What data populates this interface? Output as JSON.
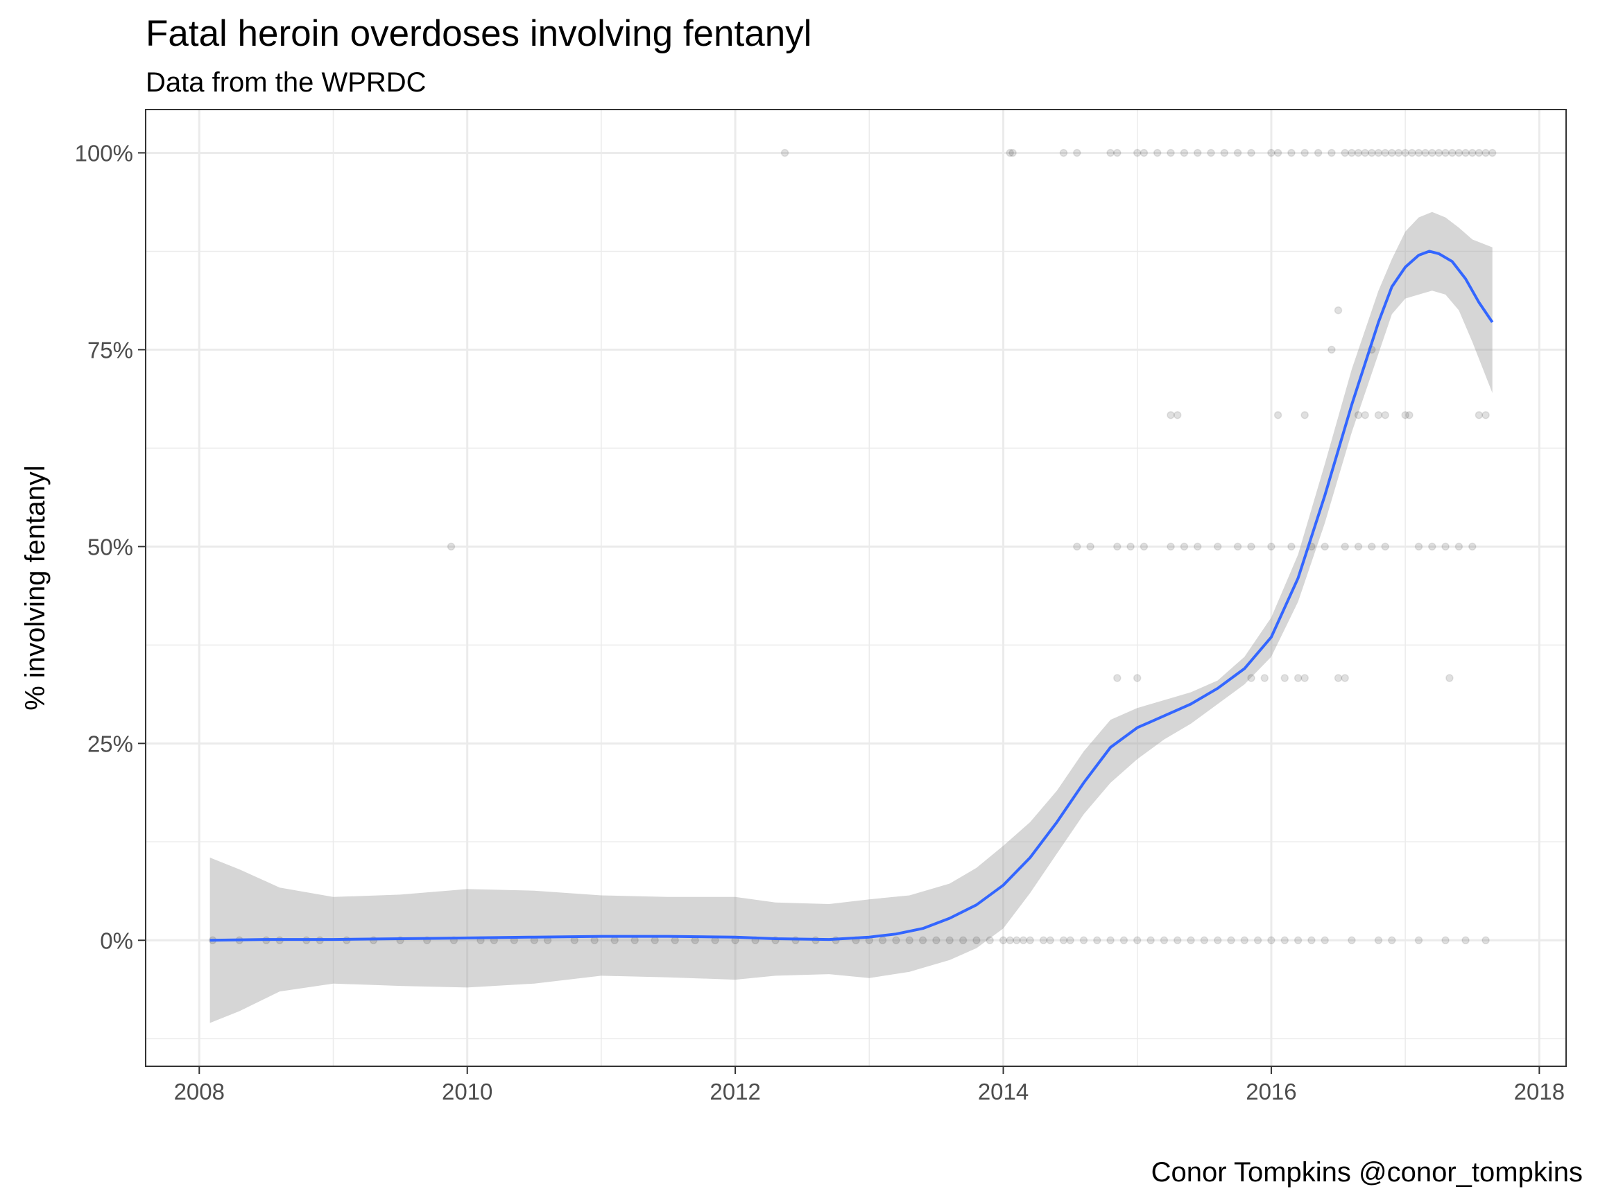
{
  "chart_data": {
    "type": "scatter",
    "title": "Fatal heroin overdoses involving fentanyl",
    "subtitle": "Data from the WPRDC",
    "caption": "Conor Tompkins @conor_tompkins",
    "xlabel": "",
    "ylabel": "% involving fentanyl",
    "xlim": [
      2007.6,
      2018.2
    ],
    "ylim": [
      -0.16,
      1.055
    ],
    "x_ticks": [
      {
        "value": 2008,
        "label": "2008"
      },
      {
        "value": 2010,
        "label": "2010"
      },
      {
        "value": 2012,
        "label": "2012"
      },
      {
        "value": 2014,
        "label": "2014"
      },
      {
        "value": 2016,
        "label": "2016"
      },
      {
        "value": 2018,
        "label": "2018"
      }
    ],
    "y_ticks": [
      {
        "value": 0,
        "label": "0%"
      },
      {
        "value": 0.25,
        "label": "25%"
      },
      {
        "value": 0.5,
        "label": "50%"
      },
      {
        "value": 0.75,
        "label": "75%"
      },
      {
        "value": 1,
        "label": "100%"
      }
    ],
    "grid": true,
    "colors": {
      "points": "#000000",
      "smooth_line": "#3366ff",
      "ribbon": "#999999",
      "grid": "#ebebeb",
      "border": "#333333"
    },
    "points_opacity": 0.12,
    "series": [
      {
        "type": "scatter",
        "points": [
          [
            2008.1,
            0
          ],
          [
            2008.3,
            0
          ],
          [
            2008.5,
            0
          ],
          [
            2008.6,
            0
          ],
          [
            2008.8,
            0
          ],
          [
            2008.9,
            0
          ],
          [
            2009.1,
            0
          ],
          [
            2009.3,
            0
          ],
          [
            2009.5,
            0
          ],
          [
            2009.7,
            0
          ],
          [
            2009.9,
            0
          ],
          [
            2010.1,
            0
          ],
          [
            2010.2,
            0
          ],
          [
            2010.35,
            0
          ],
          [
            2010.5,
            0
          ],
          [
            2010.6,
            0
          ],
          [
            2010.8,
            0
          ],
          [
            2010.95,
            0
          ],
          [
            2011.1,
            0
          ],
          [
            2011.25,
            0
          ],
          [
            2011.4,
            0
          ],
          [
            2011.55,
            0
          ],
          [
            2011.7,
            0
          ],
          [
            2011.85,
            0
          ],
          [
            2012.0,
            0
          ],
          [
            2012.15,
            0
          ],
          [
            2012.3,
            0
          ],
          [
            2012.45,
            0
          ],
          [
            2012.6,
            0
          ],
          [
            2012.75,
            0
          ],
          [
            2012.9,
            0
          ],
          [
            2013.0,
            0
          ],
          [
            2013.1,
            0
          ],
          [
            2013.2,
            0
          ],
          [
            2013.3,
            0
          ],
          [
            2013.4,
            0
          ],
          [
            2013.5,
            0
          ],
          [
            2013.6,
            0
          ],
          [
            2013.7,
            0
          ],
          [
            2013.8,
            0
          ],
          [
            2013.9,
            0
          ],
          [
            2014.0,
            0
          ],
          [
            2014.05,
            0
          ],
          [
            2014.1,
            0
          ],
          [
            2014.15,
            0
          ],
          [
            2014.2,
            0
          ],
          [
            2014.3,
            0
          ],
          [
            2014.35,
            0
          ],
          [
            2014.45,
            0
          ],
          [
            2014.5,
            0
          ],
          [
            2014.6,
            0
          ],
          [
            2014.7,
            0
          ],
          [
            2014.8,
            0
          ],
          [
            2014.9,
            0
          ],
          [
            2015.0,
            0
          ],
          [
            2015.1,
            0
          ],
          [
            2015.2,
            0
          ],
          [
            2015.3,
            0
          ],
          [
            2015.4,
            0
          ],
          [
            2015.5,
            0
          ],
          [
            2015.6,
            0
          ],
          [
            2015.7,
            0
          ],
          [
            2015.8,
            0
          ],
          [
            2015.9,
            0
          ],
          [
            2016.0,
            0
          ],
          [
            2016.1,
            0
          ],
          [
            2016.2,
            0
          ],
          [
            2016.3,
            0
          ],
          [
            2016.4,
            0
          ],
          [
            2016.6,
            0
          ],
          [
            2016.8,
            0
          ],
          [
            2016.9,
            0
          ],
          [
            2017.1,
            0
          ],
          [
            2017.3,
            0
          ],
          [
            2017.45,
            0
          ],
          [
            2017.6,
            0
          ],
          [
            2012.37,
            1
          ],
          [
            2014.05,
            1
          ],
          [
            2014.07,
            1
          ],
          [
            2014.45,
            1
          ],
          [
            2014.55,
            1
          ],
          [
            2014.8,
            1
          ],
          [
            2014.85,
            1
          ],
          [
            2015.0,
            1
          ],
          [
            2015.05,
            1
          ],
          [
            2015.15,
            1
          ],
          [
            2015.25,
            1
          ],
          [
            2015.35,
            1
          ],
          [
            2015.45,
            1
          ],
          [
            2015.55,
            1
          ],
          [
            2015.65,
            1
          ],
          [
            2015.75,
            1
          ],
          [
            2015.85,
            1
          ],
          [
            2016.0,
            1
          ],
          [
            2016.05,
            1
          ],
          [
            2016.15,
            1
          ],
          [
            2016.25,
            1
          ],
          [
            2016.35,
            1
          ],
          [
            2016.45,
            1
          ],
          [
            2016.55,
            1
          ],
          [
            2016.6,
            1
          ],
          [
            2016.65,
            1
          ],
          [
            2016.7,
            1
          ],
          [
            2016.75,
            1
          ],
          [
            2016.8,
            1
          ],
          [
            2016.85,
            1
          ],
          [
            2016.9,
            1
          ],
          [
            2016.95,
            1
          ],
          [
            2017.0,
            1
          ],
          [
            2017.05,
            1
          ],
          [
            2017.1,
            1
          ],
          [
            2017.15,
            1
          ],
          [
            2017.2,
            1
          ],
          [
            2017.25,
            1
          ],
          [
            2017.3,
            1
          ],
          [
            2017.35,
            1
          ],
          [
            2017.4,
            1
          ],
          [
            2017.45,
            1
          ],
          [
            2017.5,
            1
          ],
          [
            2017.55,
            1
          ],
          [
            2017.6,
            1
          ],
          [
            2017.65,
            1
          ],
          [
            2009.88,
            0.5
          ],
          [
            2014.55,
            0.5
          ],
          [
            2014.65,
            0.5
          ],
          [
            2014.85,
            0.5
          ],
          [
            2014.95,
            0.5
          ],
          [
            2015.05,
            0.5
          ],
          [
            2015.25,
            0.5
          ],
          [
            2015.35,
            0.5
          ],
          [
            2015.45,
            0.5
          ],
          [
            2015.6,
            0.5
          ],
          [
            2015.75,
            0.5
          ],
          [
            2015.85,
            0.5
          ],
          [
            2016.0,
            0.5
          ],
          [
            2016.15,
            0.5
          ],
          [
            2016.3,
            0.5
          ],
          [
            2016.4,
            0.5
          ],
          [
            2016.55,
            0.5
          ],
          [
            2016.65,
            0.5
          ],
          [
            2016.75,
            0.5
          ],
          [
            2016.85,
            0.5
          ],
          [
            2017.1,
            0.5
          ],
          [
            2017.2,
            0.5
          ],
          [
            2017.3,
            0.5
          ],
          [
            2017.4,
            0.5
          ],
          [
            2017.5,
            0.5
          ],
          [
            2014.85,
            0.333
          ],
          [
            2015.0,
            0.333
          ],
          [
            2015.85,
            0.333
          ],
          [
            2015.95,
            0.333
          ],
          [
            2016.1,
            0.333
          ],
          [
            2016.2,
            0.333
          ],
          [
            2016.25,
            0.333
          ],
          [
            2016.5,
            0.333
          ],
          [
            2016.55,
            0.333
          ],
          [
            2017.33,
            0.333
          ],
          [
            2016.45,
            0.75
          ],
          [
            2016.75,
            0.75
          ],
          [
            2016.5,
            0.8
          ],
          [
            2015.25,
            0.667
          ],
          [
            2015.3,
            0.667
          ],
          [
            2016.05,
            0.667
          ],
          [
            2016.25,
            0.667
          ],
          [
            2016.65,
            0.667
          ],
          [
            2016.7,
            0.667
          ],
          [
            2016.8,
            0.667
          ],
          [
            2016.85,
            0.667
          ],
          [
            2017.0,
            0.667
          ],
          [
            2017.03,
            0.667
          ],
          [
            2017.55,
            0.667
          ],
          [
            2017.6,
            0.667
          ]
        ]
      },
      {
        "type": "smooth",
        "points": [
          [
            2008.08,
            0
          ],
          [
            2008.5,
            0.001
          ],
          [
            2009.0,
            0.001
          ],
          [
            2009.5,
            0.002
          ],
          [
            2010.0,
            0.003
          ],
          [
            2010.5,
            0.004
          ],
          [
            2011.0,
            0.005
          ],
          [
            2011.5,
            0.005
          ],
          [
            2012.0,
            0.004
          ],
          [
            2012.3,
            0.002
          ],
          [
            2012.7,
            0.001
          ],
          [
            2013.0,
            0.004
          ],
          [
            2013.2,
            0.008
          ],
          [
            2013.4,
            0.015
          ],
          [
            2013.6,
            0.028
          ],
          [
            2013.8,
            0.045
          ],
          [
            2014.0,
            0.07
          ],
          [
            2014.2,
            0.105
          ],
          [
            2014.4,
            0.15
          ],
          [
            2014.6,
            0.2
          ],
          [
            2014.8,
            0.245
          ],
          [
            2015.0,
            0.27
          ],
          [
            2015.2,
            0.285
          ],
          [
            2015.4,
            0.3
          ],
          [
            2015.6,
            0.32
          ],
          [
            2015.8,
            0.345
          ],
          [
            2016.0,
            0.385
          ],
          [
            2016.2,
            0.46
          ],
          [
            2016.4,
            0.565
          ],
          [
            2016.6,
            0.68
          ],
          [
            2016.8,
            0.785
          ],
          [
            2016.9,
            0.83
          ],
          [
            2017.0,
            0.855
          ],
          [
            2017.1,
            0.87
          ],
          [
            2017.18,
            0.875
          ],
          [
            2017.25,
            0.872
          ],
          [
            2017.35,
            0.862
          ],
          [
            2017.45,
            0.84
          ],
          [
            2017.55,
            0.81
          ],
          [
            2017.65,
            0.785
          ]
        ]
      },
      {
        "type": "ribbon",
        "upper": [
          [
            2008.08,
            0.105
          ],
          [
            2008.3,
            0.09
          ],
          [
            2008.6,
            0.067
          ],
          [
            2009.0,
            0.055
          ],
          [
            2009.5,
            0.058
          ],
          [
            2010.0,
            0.065
          ],
          [
            2010.5,
            0.063
          ],
          [
            2011.0,
            0.057
          ],
          [
            2011.5,
            0.055
          ],
          [
            2012.0,
            0.055
          ],
          [
            2012.3,
            0.048
          ],
          [
            2012.7,
            0.046
          ],
          [
            2013.0,
            0.052
          ],
          [
            2013.3,
            0.057
          ],
          [
            2013.6,
            0.072
          ],
          [
            2013.8,
            0.092
          ],
          [
            2014.0,
            0.12
          ],
          [
            2014.2,
            0.15
          ],
          [
            2014.4,
            0.19
          ],
          [
            2014.6,
            0.24
          ],
          [
            2014.8,
            0.28
          ],
          [
            2015.0,
            0.295
          ],
          [
            2015.2,
            0.305
          ],
          [
            2015.4,
            0.315
          ],
          [
            2015.6,
            0.33
          ],
          [
            2015.8,
            0.36
          ],
          [
            2016.0,
            0.41
          ],
          [
            2016.2,
            0.49
          ],
          [
            2016.4,
            0.605
          ],
          [
            2016.6,
            0.725
          ],
          [
            2016.8,
            0.825
          ],
          [
            2016.9,
            0.865
          ],
          [
            2017.0,
            0.9
          ],
          [
            2017.1,
            0.918
          ],
          [
            2017.2,
            0.925
          ],
          [
            2017.3,
            0.918
          ],
          [
            2017.4,
            0.905
          ],
          [
            2017.5,
            0.89
          ],
          [
            2017.65,
            0.88
          ]
        ],
        "lower": [
          [
            2008.08,
            -0.105
          ],
          [
            2008.3,
            -0.09
          ],
          [
            2008.6,
            -0.065
          ],
          [
            2009.0,
            -0.055
          ],
          [
            2009.5,
            -0.058
          ],
          [
            2010.0,
            -0.06
          ],
          [
            2010.5,
            -0.055
          ],
          [
            2011.0,
            -0.045
          ],
          [
            2011.5,
            -0.047
          ],
          [
            2012.0,
            -0.05
          ],
          [
            2012.3,
            -0.045
          ],
          [
            2012.7,
            -0.043
          ],
          [
            2013.0,
            -0.048
          ],
          [
            2013.3,
            -0.04
          ],
          [
            2013.6,
            -0.025
          ],
          [
            2013.8,
            -0.01
          ],
          [
            2014.0,
            0.015
          ],
          [
            2014.2,
            0.06
          ],
          [
            2014.4,
            0.11
          ],
          [
            2014.6,
            0.16
          ],
          [
            2014.8,
            0.2
          ],
          [
            2015.0,
            0.23
          ],
          [
            2015.2,
            0.255
          ],
          [
            2015.4,
            0.275
          ],
          [
            2015.6,
            0.3
          ],
          [
            2015.8,
            0.325
          ],
          [
            2016.0,
            0.36
          ],
          [
            2016.2,
            0.43
          ],
          [
            2016.4,
            0.53
          ],
          [
            2016.6,
            0.645
          ],
          [
            2016.8,
            0.745
          ],
          [
            2016.9,
            0.795
          ],
          [
            2017.0,
            0.815
          ],
          [
            2017.1,
            0.82
          ],
          [
            2017.2,
            0.825
          ],
          [
            2017.3,
            0.82
          ],
          [
            2017.4,
            0.8
          ],
          [
            2017.5,
            0.76
          ],
          [
            2017.65,
            0.695
          ]
        ]
      }
    ]
  }
}
